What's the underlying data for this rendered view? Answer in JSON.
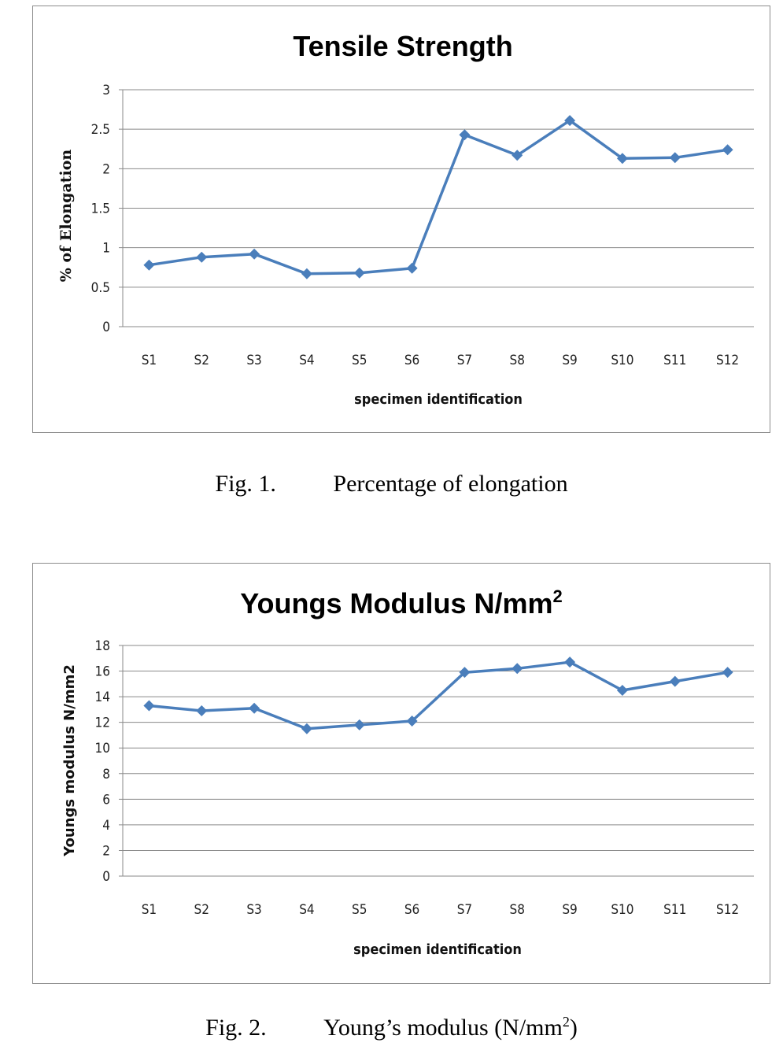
{
  "chart_data": [
    {
      "type": "line",
      "title": "Tensile Strength",
      "xlabel": "specimen identification",
      "ylabel": "% of Elongation",
      "categories": [
        "S1",
        "S2",
        "S3",
        "S4",
        "S5",
        "S6",
        "S7",
        "S8",
        "S9",
        "S10",
        "S11",
        "S12"
      ],
      "series": [
        {
          "name": "% of Elongation",
          "values": [
            0.78,
            0.88,
            0.92,
            0.67,
            0.68,
            0.74,
            2.43,
            2.17,
            2.61,
            2.13,
            2.14,
            2.24
          ]
        }
      ],
      "ylim": [
        0,
        3
      ],
      "yticks": [
        "0",
        "0.5",
        "1",
        "1.5",
        "2",
        "2.5",
        "3"
      ],
      "ytick_values": [
        0,
        0.5,
        1,
        1.5,
        2,
        2.5,
        3
      ],
      "grid": true,
      "color": "#4a7ebb"
    },
    {
      "type": "line",
      "title": "Youngs Modulus N/mm",
      "title_superscript": "2",
      "xlabel": "specimen identification",
      "ylabel": "Youngs modulus N/mm2",
      "categories": [
        "S1",
        "S2",
        "S3",
        "S4",
        "S5",
        "S6",
        "S7",
        "S8",
        "S9",
        "S10",
        "S11",
        "S12"
      ],
      "series": [
        {
          "name": "Youngs modulus",
          "values": [
            13.3,
            12.9,
            13.1,
            11.5,
            11.8,
            12.1,
            15.9,
            16.2,
            16.7,
            14.5,
            15.2,
            15.9
          ]
        }
      ],
      "ylim": [
        0,
        18
      ],
      "yticks": [
        "0",
        "2",
        "4",
        "6",
        "8",
        "10",
        "12",
        "14",
        "16",
        "18"
      ],
      "ytick_values": [
        0,
        2,
        4,
        6,
        8,
        10,
        12,
        14,
        16,
        18
      ],
      "grid": true,
      "color": "#4a7ebb"
    }
  ],
  "captions": {
    "fig1": {
      "label": "Fig. 1.",
      "text": "Percentage of elongation"
    },
    "fig2": {
      "label": "Fig. 2.",
      "text": "Young’s modulus (N/mm",
      "sup": "2",
      "close": ")"
    }
  }
}
